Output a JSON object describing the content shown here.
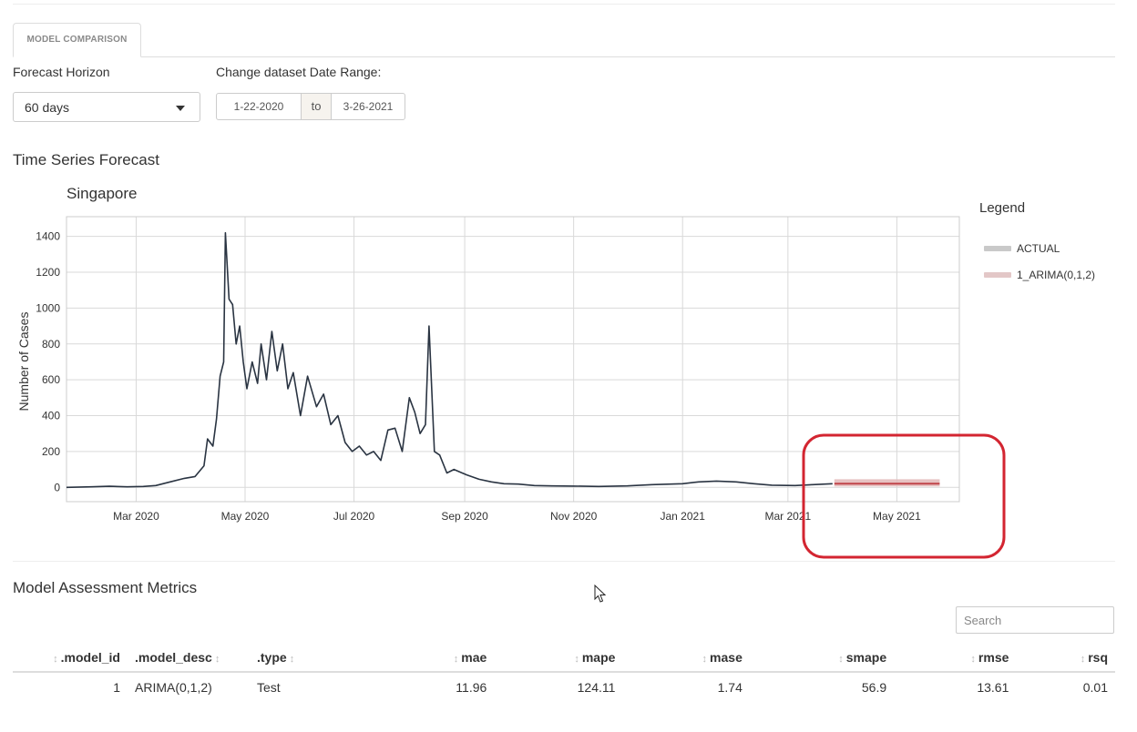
{
  "tabs": [
    {
      "label": "MODEL COMPARISON"
    }
  ],
  "controls": {
    "horizon_label": "Forecast Horizon",
    "horizon_value": "60 days",
    "date_range_label": "Change dataset Date Range:",
    "date_start": "1-22-2020",
    "date_sep": "to",
    "date_end": "3-26-2021"
  },
  "sections": {
    "forecast_title": "Time Series Forecast",
    "metrics_title": "Model Assessment Metrics"
  },
  "legend": {
    "title": "Legend",
    "items": [
      {
        "label": "ACTUAL",
        "color": "#c9c9c9"
      },
      {
        "label": "1_ARIMA(0,1,2)",
        "color": "#e3c7c7"
      }
    ]
  },
  "chart_data": {
    "type": "line",
    "title": "Singapore",
    "ylabel": "Number of Cases",
    "xlabel": "",
    "ylim": [
      -80,
      1510
    ],
    "xlim": [
      "2020-01-22",
      "2021-06-05"
    ],
    "y_ticks": [
      0,
      200,
      400,
      600,
      800,
      1000,
      1200,
      1400
    ],
    "x_ticks": [
      {
        "date": "2020-03-01",
        "label": "Mar 2020"
      },
      {
        "date": "2020-05-01",
        "label": "May 2020"
      },
      {
        "date": "2020-07-01",
        "label": "Jul 2020"
      },
      {
        "date": "2020-09-01",
        "label": "Sep 2020"
      },
      {
        "date": "2020-11-01",
        "label": "Nov 2020"
      },
      {
        "date": "2021-01-01",
        "label": "Jan 2021"
      },
      {
        "date": "2021-03-01",
        "label": "Mar 2021"
      },
      {
        "date": "2021-05-01",
        "label": "May 2021"
      }
    ],
    "grid": true,
    "series": [
      {
        "name": "ACTUAL",
        "color": "#2a3442",
        "points": [
          [
            "2020-01-22",
            0
          ],
          [
            "2020-02-05",
            3
          ],
          [
            "2020-02-15",
            6
          ],
          [
            "2020-02-25",
            3
          ],
          [
            "2020-03-05",
            5
          ],
          [
            "2020-03-12",
            10
          ],
          [
            "2020-03-20",
            30
          ],
          [
            "2020-03-28",
            50
          ],
          [
            "2020-04-03",
            60
          ],
          [
            "2020-04-08",
            120
          ],
          [
            "2020-04-10",
            270
          ],
          [
            "2020-04-13",
            230
          ],
          [
            "2020-04-15",
            380
          ],
          [
            "2020-04-17",
            620
          ],
          [
            "2020-04-19",
            700
          ],
          [
            "2020-04-20",
            1420
          ],
          [
            "2020-04-22",
            1050
          ],
          [
            "2020-04-24",
            1020
          ],
          [
            "2020-04-26",
            800
          ],
          [
            "2020-04-28",
            900
          ],
          [
            "2020-04-30",
            700
          ],
          [
            "2020-05-02",
            550
          ],
          [
            "2020-05-05",
            700
          ],
          [
            "2020-05-08",
            580
          ],
          [
            "2020-05-10",
            800
          ],
          [
            "2020-05-13",
            600
          ],
          [
            "2020-05-16",
            870
          ],
          [
            "2020-05-19",
            650
          ],
          [
            "2020-05-22",
            800
          ],
          [
            "2020-05-25",
            550
          ],
          [
            "2020-05-28",
            640
          ],
          [
            "2020-06-01",
            400
          ],
          [
            "2020-06-05",
            620
          ],
          [
            "2020-06-10",
            450
          ],
          [
            "2020-06-14",
            520
          ],
          [
            "2020-06-18",
            350
          ],
          [
            "2020-06-22",
            400
          ],
          [
            "2020-06-26",
            250
          ],
          [
            "2020-06-30",
            200
          ],
          [
            "2020-07-04",
            230
          ],
          [
            "2020-07-08",
            180
          ],
          [
            "2020-07-12",
            200
          ],
          [
            "2020-07-16",
            150
          ],
          [
            "2020-07-20",
            320
          ],
          [
            "2020-07-24",
            330
          ],
          [
            "2020-07-28",
            200
          ],
          [
            "2020-08-01",
            500
          ],
          [
            "2020-08-04",
            420
          ],
          [
            "2020-08-07",
            300
          ],
          [
            "2020-08-10",
            350
          ],
          [
            "2020-08-12",
            900
          ],
          [
            "2020-08-15",
            200
          ],
          [
            "2020-08-18",
            180
          ],
          [
            "2020-08-22",
            80
          ],
          [
            "2020-08-26",
            100
          ],
          [
            "2020-09-02",
            70
          ],
          [
            "2020-09-09",
            45
          ],
          [
            "2020-09-16",
            30
          ],
          [
            "2020-09-23",
            20
          ],
          [
            "2020-10-01",
            18
          ],
          [
            "2020-10-10",
            10
          ],
          [
            "2020-10-20",
            8
          ],
          [
            "2020-11-01",
            7
          ],
          [
            "2020-11-15",
            5
          ],
          [
            "2020-12-01",
            8
          ],
          [
            "2020-12-15",
            15
          ],
          [
            "2021-01-01",
            20
          ],
          [
            "2021-01-10",
            30
          ],
          [
            "2021-01-20",
            35
          ],
          [
            "2021-01-31",
            30
          ],
          [
            "2021-02-10",
            20
          ],
          [
            "2021-02-20",
            12
          ],
          [
            "2021-03-05",
            10
          ],
          [
            "2021-03-15",
            15
          ],
          [
            "2021-03-26",
            20
          ]
        ]
      },
      {
        "name": "1_ARIMA(0,1,2)",
        "color": "#c0444a",
        "band_color": "#e3b7b7",
        "points": [
          [
            "2021-03-27",
            20
          ],
          [
            "2021-05-25",
            20
          ]
        ],
        "band_low": 5,
        "band_high": 45
      }
    ]
  },
  "annotation": {
    "color": "#d32531"
  },
  "search": {
    "placeholder": "Search"
  },
  "table": {
    "columns": [
      ".model_id",
      ".model_desc",
      ".type",
      "mae",
      "mape",
      "mase",
      "smape",
      "rmse",
      "rsq"
    ],
    "rows": [
      [
        "1",
        "ARIMA(0,1,2)",
        "Test",
        "11.96",
        "124.11",
        "1.74",
        "56.9",
        "13.61",
        "0.01"
      ]
    ]
  }
}
